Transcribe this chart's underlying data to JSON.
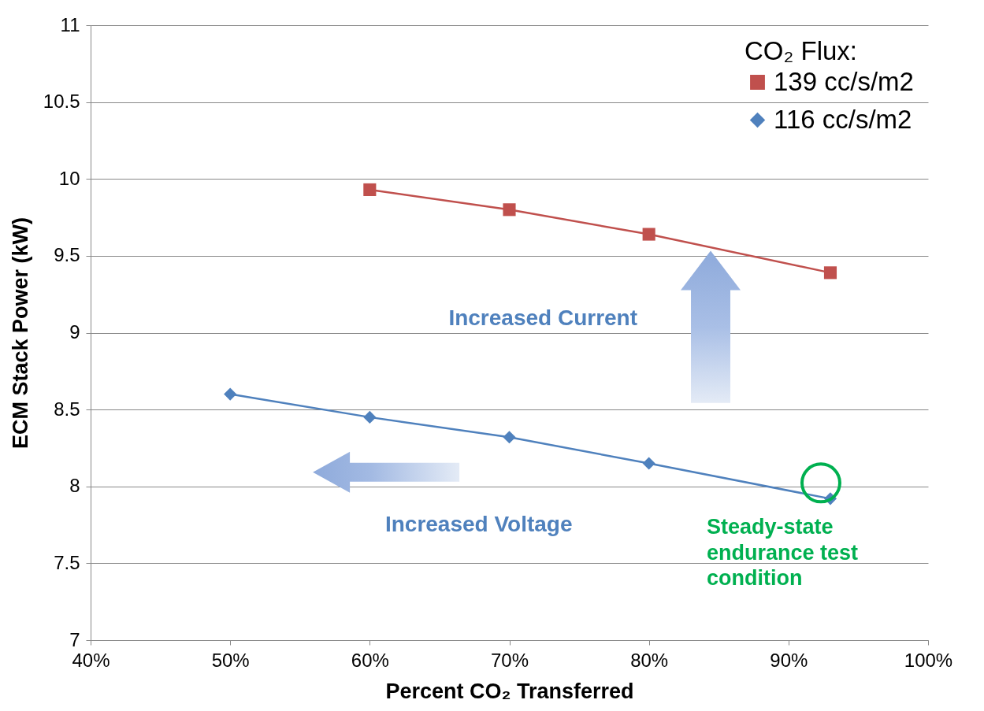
{
  "chart_data": {
    "type": "line",
    "xlabel": "Percent CO₂ Transferred",
    "ylabel": "ECM Stack Power (kW)",
    "legend_title": "CO₂ Flux:",
    "legend": "top right",
    "grid": "y",
    "xlim": [
      40,
      100
    ],
    "xticks": [
      {
        "value": 40,
        "label": "40%"
      },
      {
        "value": 50,
        "label": "50%"
      },
      {
        "value": 60,
        "label": "60%"
      },
      {
        "value": 70,
        "label": "70%"
      },
      {
        "value": 80,
        "label": "80%"
      },
      {
        "value": 90,
        "label": "90%"
      },
      {
        "value": 100,
        "label": "100%"
      }
    ],
    "ylim": [
      7,
      11
    ],
    "yticks": [
      7,
      7.5,
      8,
      8.5,
      9,
      9.5,
      10,
      10.5,
      11
    ],
    "series": [
      {
        "name": "139 cc/s/m2",
        "color": "#c0504d",
        "marker": "square",
        "x": [
          60,
          70,
          80,
          93
        ],
        "values": [
          9.93,
          9.8,
          9.64,
          9.39
        ]
      },
      {
        "name": "116 cc/s/m2",
        "color": "#4f81bd",
        "marker": "diamond",
        "x": [
          50,
          60,
          70,
          80,
          93
        ],
        "values": [
          8.6,
          8.45,
          8.32,
          8.15,
          7.92
        ]
      }
    ],
    "annotations": [
      "Increased Current",
      "Increased Voltage",
      {
        "text": "Steady-state endurance test condition",
        "x": 93,
        "y": 7.92
      }
    ]
  }
}
